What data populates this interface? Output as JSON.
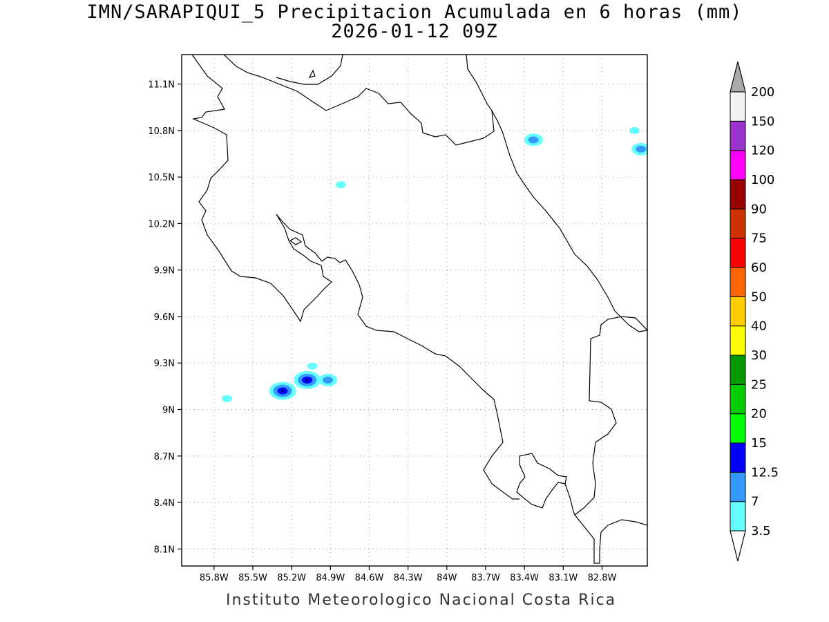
{
  "title": {
    "line1": "IMN/SARAPIQUI_5 Precipitacion Acumulada en 6 horas (mm)",
    "line2": "2026-01-12 09Z"
  },
  "footer": "Instituto Meteorologico Nacional Costa Rica",
  "map": {
    "lon_range": [
      -86.05,
      -82.45
    ],
    "lat_range": [
      7.99,
      11.29
    ],
    "lon_ticks": [
      {
        "value": -85.8,
        "label": "85.8W"
      },
      {
        "value": -85.5,
        "label": "85.5W"
      },
      {
        "value": -85.2,
        "label": "85.2W"
      },
      {
        "value": -84.9,
        "label": "84.9W"
      },
      {
        "value": -84.6,
        "label": "84.6W"
      },
      {
        "value": -84.3,
        "label": "84.3W"
      },
      {
        "value": -84.0,
        "label": "84W"
      },
      {
        "value": -83.7,
        "label": "83.7W"
      },
      {
        "value": -83.4,
        "label": "83.4W"
      },
      {
        "value": -83.1,
        "label": "83.1W"
      },
      {
        "value": -82.8,
        "label": "82.8W"
      }
    ],
    "lat_ticks": [
      {
        "value": 11.1,
        "label": "11.1N"
      },
      {
        "value": 10.8,
        "label": "10.8N"
      },
      {
        "value": 10.5,
        "label": "10.5N"
      },
      {
        "value": 10.2,
        "label": "10.2N"
      },
      {
        "value": 9.9,
        "label": "9.9N"
      },
      {
        "value": 9.6,
        "label": "9.6N"
      },
      {
        "value": 9.3,
        "label": "9.3N"
      },
      {
        "value": 9.0,
        "label": "9N"
      },
      {
        "value": 8.7,
        "label": "8.7N"
      },
      {
        "value": 8.4,
        "label": "8.4N"
      },
      {
        "value": 8.1,
        "label": "8.1N"
      }
    ],
    "grid": true
  },
  "colorbar": {
    "levels": [
      "3.5",
      "7",
      "12.5",
      "15",
      "20",
      "25",
      "30",
      "40",
      "50",
      "60",
      "75",
      "90",
      "100",
      "120",
      "150",
      "200"
    ],
    "colors": [
      "#66ffff",
      "#3399ff",
      "#0000ff",
      "#00ff00",
      "#00cc00",
      "#009900",
      "#ffff00",
      "#ffcc00",
      "#ff6600",
      "#ff0000",
      "#cc3300",
      "#990000",
      "#ff00ff",
      "#9933cc",
      "#f2f2f2"
    ],
    "over_color": "#aaaaaa",
    "under_color": "#ffffff"
  },
  "precip_cells": [
    {
      "lon": -85.27,
      "lat": 9.12,
      "level": 3
    },
    {
      "lon": -85.08,
      "lat": 9.19,
      "level": 3
    },
    {
      "lon": -84.92,
      "lat": 9.19,
      "level": 2
    },
    {
      "lon": -85.7,
      "lat": 9.07,
      "level": 1
    },
    {
      "lon": -85.04,
      "lat": 9.28,
      "level": 1
    },
    {
      "lon": -84.82,
      "lat": 10.45,
      "level": 1
    },
    {
      "lon": -83.33,
      "lat": 10.74,
      "level": 2
    },
    {
      "lon": -82.5,
      "lat": 10.68,
      "level": 2
    },
    {
      "lon": -82.55,
      "lat": 10.8,
      "level": 1
    }
  ]
}
